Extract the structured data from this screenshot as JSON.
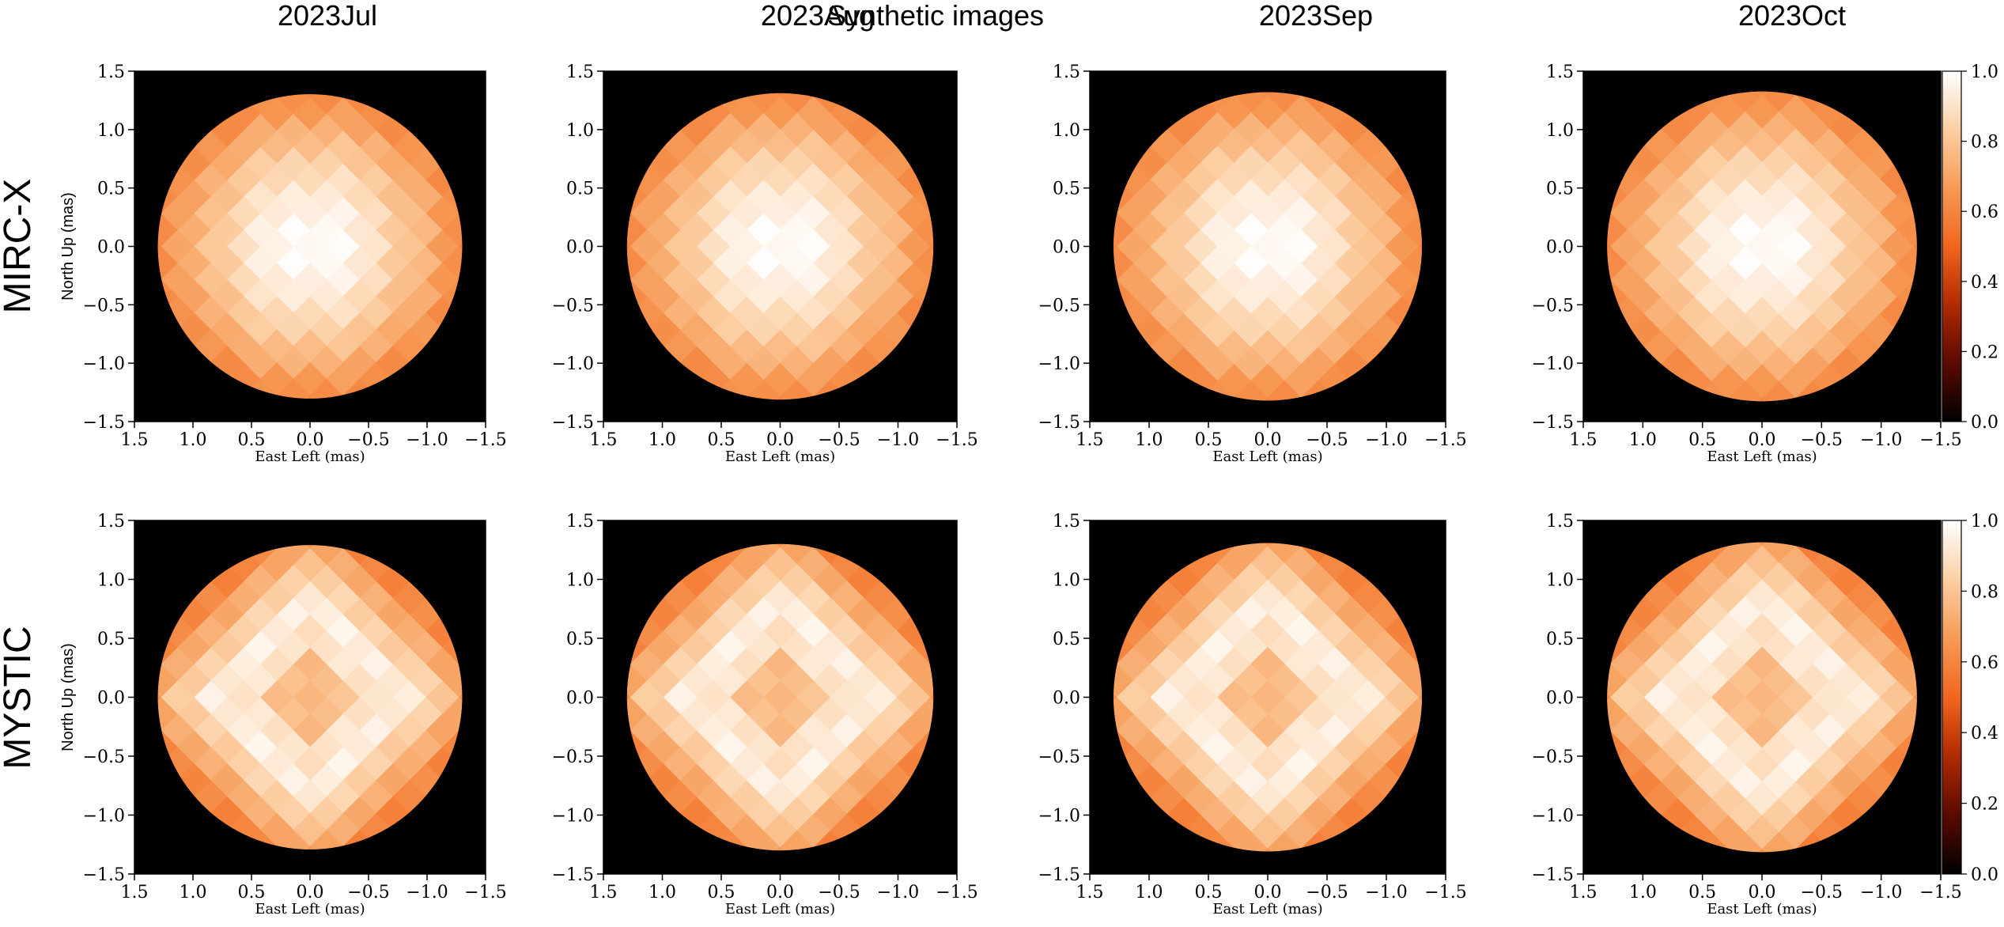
{
  "figure": {
    "title": "Synthetic images",
    "column_labels": [
      "2023Jul",
      "2023Aug",
      "2023Sep",
      "2023Oct"
    ],
    "row_labels": [
      "MIRC-X",
      "MYSTIC"
    ]
  },
  "colors": {
    "background": "#000000",
    "colormap": "gist_heat",
    "colormap_stops": [
      "#000000",
      "#5a0a00",
      "#b02a00",
      "#f2661e",
      "#f69a56",
      "#fccfa3",
      "#ffffff"
    ],
    "limb": "#f26a22"
  },
  "chart_data": [
    {
      "type": "heatmap",
      "panel": "MIRC-X 2023Jul",
      "row": "MIRC-X",
      "column": "2023Jul",
      "xlabel": "East Left (mas)",
      "ylabel": "North Up (mas)",
      "xlim": [
        1.5,
        -1.5
      ],
      "ylim": [
        -1.5,
        1.5
      ],
      "xticks": [
        1.5,
        1.0,
        0.5,
        0.0,
        -0.5,
        -1.0,
        -1.5
      ],
      "yticks": [
        1.5,
        1.0,
        0.5,
        0.0,
        -0.5,
        -1.0,
        -1.5
      ],
      "tick_labels": [
        "1.5",
        "1.0",
        "0.5",
        "0.0",
        "−0.5",
        "−1.0",
        "−1.5"
      ],
      "disk_radius": 1.3,
      "value_range": [
        0.0,
        1.0
      ],
      "center_peak": 1.0,
      "ring_peak": 0.86,
      "limb_value": 0.62,
      "grid": false
    },
    {
      "type": "heatmap",
      "panel": "MIRC-X 2023Aug",
      "row": "MIRC-X",
      "column": "2023Aug",
      "xlabel": "East Left (mas)",
      "ylabel": "",
      "xlim": [
        1.5,
        -1.5
      ],
      "ylim": [
        -1.5,
        1.5
      ],
      "xticks": [
        1.5,
        1.0,
        0.5,
        0.0,
        -0.5,
        -1.0,
        -1.5
      ],
      "yticks": [
        1.5,
        1.0,
        0.5,
        0.0,
        -0.5,
        -1.0,
        -1.5
      ],
      "tick_labels": [
        "1.5",
        "1.0",
        "0.5",
        "0.0",
        "−0.5",
        "−1.0",
        "−1.5"
      ],
      "disk_radius": 1.3,
      "value_range": [
        0.0,
        1.0
      ],
      "center_peak": 1.0,
      "ring_peak": 0.86,
      "limb_value": 0.62,
      "grid": false
    },
    {
      "type": "heatmap",
      "panel": "MIRC-X 2023Sep",
      "row": "MIRC-X",
      "column": "2023Sep",
      "xlabel": "East Left (mas)",
      "ylabel": "",
      "xlim": [
        1.5,
        -1.5
      ],
      "ylim": [
        -1.5,
        1.5
      ],
      "xticks": [
        1.5,
        1.0,
        0.5,
        0.0,
        -0.5,
        -1.0,
        -1.5
      ],
      "yticks": [
        1.5,
        1.0,
        0.5,
        0.0,
        -0.5,
        -1.0,
        -1.5
      ],
      "tick_labels": [
        "1.5",
        "1.0",
        "0.5",
        "0.0",
        "−0.5",
        "−1.0",
        "−1.5"
      ],
      "disk_radius": 1.3,
      "value_range": [
        0.0,
        1.0
      ],
      "center_peak": 1.0,
      "ring_peak": 0.86,
      "limb_value": 0.62,
      "grid": false
    },
    {
      "type": "heatmap",
      "panel": "MIRC-X 2023Oct",
      "row": "MIRC-X",
      "column": "2023Oct",
      "xlabel": "East Left (mas)",
      "ylabel": "",
      "xlim": [
        1.5,
        -1.5
      ],
      "ylim": [
        -1.5,
        1.5
      ],
      "xticks": [
        1.5,
        1.0,
        0.5,
        0.0,
        -0.5,
        -1.0,
        -1.5
      ],
      "yticks": [
        1.5,
        1.0,
        0.5,
        0.0,
        -0.5,
        -1.0,
        -1.5
      ],
      "tick_labels": [
        "1.5",
        "1.0",
        "0.5",
        "0.0",
        "−0.5",
        "−1.0",
        "−1.5"
      ],
      "disk_radius": 1.3,
      "value_range": [
        0.0,
        1.0
      ],
      "center_peak": 1.0,
      "ring_peak": 0.86,
      "limb_value": 0.62,
      "grid": false,
      "colorbar": {
        "range": [
          0.0,
          1.0
        ],
        "ticks": [
          0.0,
          0.2,
          0.4,
          0.6,
          0.8,
          1.0
        ],
        "tick_labels": [
          "0.0",
          "0.2",
          "0.4",
          "0.6",
          "0.8",
          "1.0"
        ]
      }
    },
    {
      "type": "heatmap",
      "panel": "MYSTIC 2023Jul",
      "row": "MYSTIC",
      "column": "2023Jul",
      "xlabel": "East Left (mas)",
      "ylabel": "North Up (mas)",
      "xlim": [
        1.5,
        -1.5
      ],
      "ylim": [
        -1.5,
        1.5
      ],
      "xticks": [
        1.5,
        1.0,
        0.5,
        0.0,
        -0.5,
        -1.0,
        -1.5
      ],
      "yticks": [
        1.5,
        1.0,
        0.5,
        0.0,
        -0.5,
        -1.0,
        -1.5
      ],
      "tick_labels": [
        "1.5",
        "1.0",
        "0.5",
        "0.0",
        "−0.5",
        "−1.0",
        "−1.5"
      ],
      "disk_radius": 1.3,
      "value_range": [
        0.0,
        1.0
      ],
      "center_peak": 0.78,
      "ring_peak": 0.97,
      "limb_value": 0.64,
      "grid": false
    },
    {
      "type": "heatmap",
      "panel": "MYSTIC 2023Aug",
      "row": "MYSTIC",
      "column": "2023Aug",
      "xlabel": "East Left (mas)",
      "ylabel": "",
      "xlim": [
        1.5,
        -1.5
      ],
      "ylim": [
        -1.5,
        1.5
      ],
      "xticks": [
        1.5,
        1.0,
        0.5,
        0.0,
        -0.5,
        -1.0,
        -1.5
      ],
      "yticks": [
        1.5,
        1.0,
        0.5,
        0.0,
        -0.5,
        -1.0,
        -1.5
      ],
      "tick_labels": [
        "1.5",
        "1.0",
        "0.5",
        "0.0",
        "−0.5",
        "−1.0",
        "−1.5"
      ],
      "disk_radius": 1.3,
      "value_range": [
        0.0,
        1.0
      ],
      "center_peak": 0.78,
      "ring_peak": 0.97,
      "limb_value": 0.64,
      "grid": false
    },
    {
      "type": "heatmap",
      "panel": "MYSTIC 2023Sep",
      "row": "MYSTIC",
      "column": "2023Sep",
      "xlabel": "East Left (mas)",
      "ylabel": "",
      "xlim": [
        1.5,
        -1.5
      ],
      "ylim": [
        -1.5,
        1.5
      ],
      "xticks": [
        1.5,
        1.0,
        0.5,
        0.0,
        -0.5,
        -1.0,
        -1.5
      ],
      "yticks": [
        1.5,
        1.0,
        0.5,
        0.0,
        -0.5,
        -1.0,
        -1.5
      ],
      "tick_labels": [
        "1.5",
        "1.0",
        "0.5",
        "0.0",
        "−0.5",
        "−1.0",
        "−1.5"
      ],
      "disk_radius": 1.3,
      "value_range": [
        0.0,
        1.0
      ],
      "center_peak": 0.78,
      "ring_peak": 0.97,
      "limb_value": 0.64,
      "grid": false
    },
    {
      "type": "heatmap",
      "panel": "MYSTIC 2023Oct",
      "row": "MYSTIC",
      "column": "2023Oct",
      "xlabel": "East Left (mas)",
      "ylabel": "",
      "xlim": [
        1.5,
        -1.5
      ],
      "ylim": [
        -1.5,
        1.5
      ],
      "xticks": [
        1.5,
        1.0,
        0.5,
        0.0,
        -0.5,
        -1.0,
        -1.5
      ],
      "yticks": [
        1.5,
        1.0,
        0.5,
        0.0,
        -0.5,
        -1.0,
        -1.5
      ],
      "tick_labels": [
        "1.5",
        "1.0",
        "0.5",
        "0.0",
        "−0.5",
        "−1.0",
        "−1.5"
      ],
      "disk_radius": 1.3,
      "value_range": [
        0.0,
        1.0
      ],
      "center_peak": 0.78,
      "ring_peak": 0.97,
      "limb_value": 0.64,
      "grid": false,
      "colorbar": {
        "range": [
          0.0,
          1.0
        ],
        "ticks": [
          0.0,
          0.2,
          0.4,
          0.6,
          0.8,
          1.0
        ],
        "tick_labels": [
          "0.0",
          "0.2",
          "0.4",
          "0.6",
          "0.8",
          "1.0"
        ]
      }
    }
  ]
}
